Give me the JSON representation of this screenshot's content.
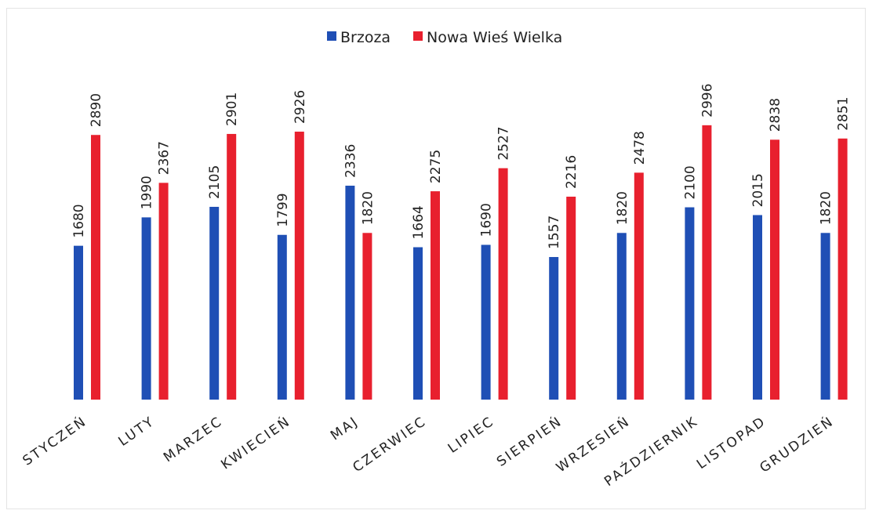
{
  "chart_data": {
    "type": "bar",
    "categories": [
      "STYCZEŃ",
      "LUTY",
      "MARZEC",
      "KWIECIEŃ",
      "MAJ",
      "CZERWIEC",
      "LIPIEC",
      "SIERPIEŃ",
      "WRZESIEŃ",
      "PAŹDZIERNIK",
      "LISTOPAD",
      "GRUDZIEŃ"
    ],
    "series": [
      {
        "name": "Brzoza",
        "color": "#1f4fb5",
        "values": [
          1680,
          1990,
          2105,
          1799,
          2336,
          1664,
          1690,
          1557,
          1820,
          2100,
          2015,
          1820
        ]
      },
      {
        "name": "Nowa Wieś Wielka",
        "color": "#e8202e",
        "values": [
          2890,
          2367,
          2901,
          2926,
          1820,
          2275,
          2527,
          2216,
          2478,
          2996,
          2838,
          2851
        ]
      }
    ],
    "ylim": [
      0,
      3200
    ],
    "grid": false,
    "legend_position": "top-center",
    "data_labels": true
  }
}
